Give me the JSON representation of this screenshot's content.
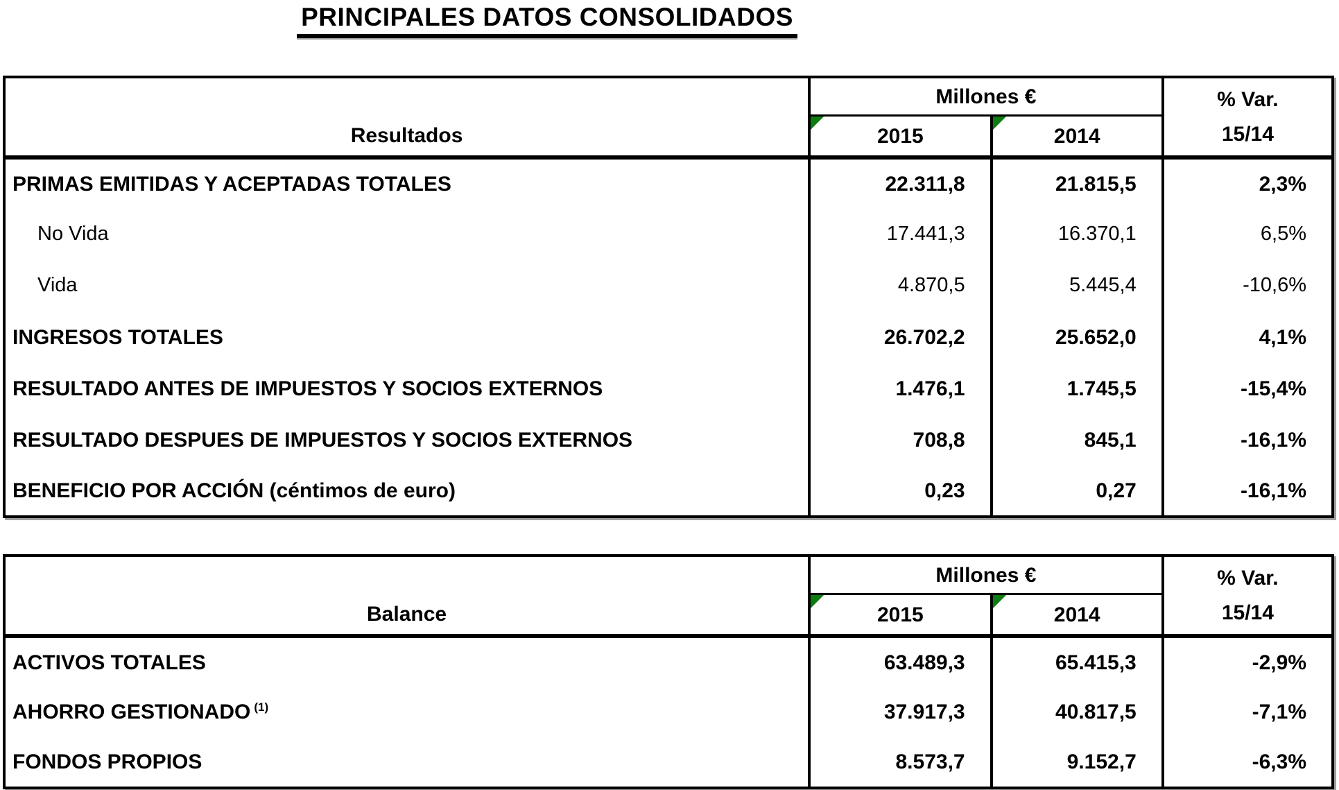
{
  "title": "PRINCIPALES DATOS CONSOLIDADOS",
  "colors": {
    "corner_marker": "#0f7c12",
    "border": "#000000",
    "shadow": "#9e9e9e"
  },
  "tables": [
    {
      "section_header": "Resultados",
      "units_header": "Millones €",
      "var_header": {
        "line1": "% Var.",
        "line2": "15/14"
      },
      "years": [
        "2015",
        "2014"
      ],
      "rows": [
        {
          "label": "PRIMAS EMITIDAS Y ACEPTADAS TOTALES",
          "v2015": "22.311,8",
          "v2014": "21.815,5",
          "var": "2,3%"
        },
        {
          "label": "No Vida",
          "v2015": "17.441,3",
          "v2014": "16.370,1",
          "var": "6,5%"
        },
        {
          "label": "Vida",
          "v2015": "4.870,5",
          "v2014": "5.445,4",
          "var": "-10,6%"
        },
        {
          "label": "INGRESOS TOTALES",
          "v2015": "26.702,2",
          "v2014": "25.652,0",
          "var": "4,1%"
        },
        {
          "label": "RESULTADO ANTES DE IMPUESTOS Y SOCIOS EXTERNOS",
          "v2015": "1.476,1",
          "v2014": "1.745,5",
          "var": "-15,4%"
        },
        {
          "label": "RESULTADO DESPUES DE IMPUESTOS Y SOCIOS EXTERNOS",
          "v2015": "708,8",
          "v2014": "845,1",
          "var": "-16,1%"
        },
        {
          "label": "BENEFICIO POR ACCIÓN (céntimos de euro)",
          "v2015": "0,23",
          "v2014": "0,27",
          "var": "-16,1%"
        }
      ]
    },
    {
      "section_header": "Balance",
      "units_header": "Millones €",
      "var_header": {
        "line1": "% Var.",
        "line2": "15/14"
      },
      "years": [
        "2015",
        "2014"
      ],
      "rows": [
        {
          "label": "ACTIVOS TOTALES",
          "v2015": "63.489,3",
          "v2014": "65.415,3",
          "var": "-2,9%"
        },
        {
          "label": "AHORRO GESTIONADO",
          "sup": "(1)",
          "v2015": "37.917,3",
          "v2014": "40.817,5",
          "var": "-7,1%"
        },
        {
          "label": "FONDOS PROPIOS",
          "v2015": "8.573,7",
          "v2014": "9.152,7",
          "var": "-6,3%"
        }
      ]
    }
  ]
}
